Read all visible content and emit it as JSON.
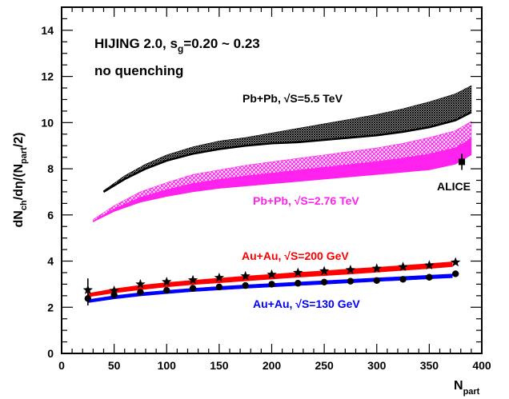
{
  "chart_data": {
    "type": "line",
    "ylabel": "dN_ch/dη/(N_part/2)",
    "xlabel": "N_part",
    "xlim": [
      0,
      400
    ],
    "ylim": [
      0,
      15
    ],
    "x_ticks": [
      0,
      50,
      100,
      150,
      200,
      250,
      300,
      350,
      400
    ],
    "y_ticks": [
      0,
      2,
      4,
      6,
      8,
      10,
      12,
      14
    ],
    "grid": false,
    "annotations": {
      "model_line1": "HIJING 2.0, s",
      "model_sub": "g",
      "model_line1_end": "=0.20 ~ 0.23",
      "model_line2": "no quenching",
      "alice": "ALICE"
    },
    "series": [
      {
        "name": "Pb+Pb, √S=5.5 TeV",
        "kind": "band",
        "color": "#000000",
        "x": [
          40,
          60,
          80,
          100,
          125,
          150,
          175,
          200,
          225,
          250,
          275,
          300,
          325,
          350,
          375,
          390
        ],
        "lower": [
          7.0,
          7.55,
          8.0,
          8.35,
          8.65,
          8.85,
          9.0,
          9.1,
          9.15,
          9.25,
          9.35,
          9.45,
          9.6,
          9.8,
          10.1,
          10.45
        ],
        "upper": [
          7.05,
          7.7,
          8.2,
          8.6,
          8.95,
          9.2,
          9.35,
          9.55,
          9.75,
          9.95,
          10.15,
          10.35,
          10.6,
          10.9,
          11.25,
          11.6
        ]
      },
      {
        "name": "Pb+Pb, √S=2.76 TeV",
        "kind": "band",
        "color": "#ff22ee",
        "x": [
          30,
          50,
          75,
          100,
          125,
          150,
          175,
          200,
          225,
          250,
          275,
          300,
          325,
          350,
          375,
          390
        ],
        "lower": [
          5.7,
          6.15,
          6.55,
          6.8,
          7.0,
          7.15,
          7.25,
          7.35,
          7.45,
          7.55,
          7.65,
          7.75,
          7.85,
          7.95,
          8.2,
          8.6
        ],
        "upper": [
          5.8,
          6.4,
          7.0,
          7.4,
          7.75,
          7.95,
          8.15,
          8.3,
          8.45,
          8.6,
          8.75,
          8.9,
          9.1,
          9.35,
          9.65,
          10.05
        ]
      },
      {
        "name": "Au+Au, √S=200 GeV",
        "kind": "band",
        "color": "#ff0000",
        "x": [
          25,
          50,
          75,
          100,
          125,
          150,
          175,
          200,
          225,
          250,
          275,
          300,
          325,
          350,
          372
        ],
        "lower": [
          2.45,
          2.62,
          2.76,
          2.88,
          2.98,
          3.06,
          3.14,
          3.22,
          3.3,
          3.37,
          3.44,
          3.52,
          3.6,
          3.68,
          3.76
        ],
        "upper": [
          2.6,
          2.8,
          2.95,
          3.07,
          3.17,
          3.26,
          3.35,
          3.43,
          3.51,
          3.58,
          3.66,
          3.73,
          3.81,
          3.89,
          3.97
        ]
      },
      {
        "name": "Au+Au, √S=130 GeV",
        "kind": "band",
        "color": "#0000ff",
        "x": [
          25,
          50,
          75,
          100,
          125,
          150,
          175,
          200,
          225,
          250,
          275,
          300,
          325,
          350,
          372
        ],
        "lower": [
          2.2,
          2.36,
          2.49,
          2.59,
          2.68,
          2.75,
          2.82,
          2.88,
          2.94,
          3.0,
          3.06,
          3.12,
          3.17,
          3.23,
          3.28
        ],
        "upper": [
          2.33,
          2.5,
          2.63,
          2.73,
          2.82,
          2.9,
          2.97,
          3.03,
          3.09,
          3.15,
          3.21,
          3.27,
          3.33,
          3.39,
          3.44
        ]
      },
      {
        "kind": "points",
        "marker": "star",
        "color": "#000000",
        "x": [
          25,
          50,
          75,
          100,
          125,
          150,
          175,
          200,
          225,
          250,
          275,
          300,
          325,
          350,
          375
        ],
        "y": [
          2.75,
          2.72,
          3.0,
          3.1,
          3.18,
          3.28,
          3.35,
          3.42,
          3.5,
          3.57,
          3.62,
          3.68,
          3.75,
          3.82,
          3.95
        ],
        "yerr": [
          [
            25,
            0.5
          ]
        ]
      },
      {
        "kind": "points",
        "marker": "circle",
        "color": "#000000",
        "x": [
          25,
          50,
          75,
          100,
          125,
          150,
          175,
          200,
          225,
          250,
          275,
          300,
          325,
          350,
          375
        ],
        "y": [
          2.38,
          2.53,
          2.65,
          2.73,
          2.82,
          2.88,
          2.94,
          3.0,
          3.04,
          3.09,
          3.13,
          3.16,
          3.21,
          3.3,
          3.45
        ],
        "yerr": [
          [
            25,
            0.3
          ]
        ]
      },
      {
        "name": "ALICE",
        "kind": "points",
        "marker": "square",
        "color": "#000000",
        "x": [
          381
        ],
        "y": [
          8.3
        ],
        "yerr": [
          [
            381,
            0.35
          ]
        ]
      }
    ]
  }
}
